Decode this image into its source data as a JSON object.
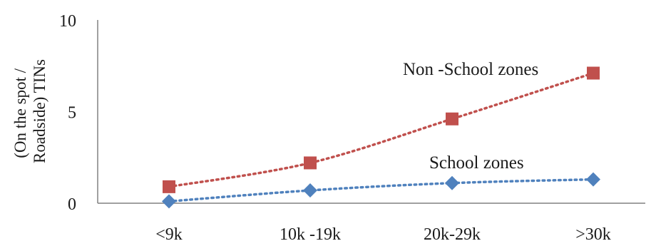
{
  "chart_data": {
    "type": "line",
    "categories": [
      "<9k",
      "10k -19k",
      "20k-29k",
      ">30k"
    ],
    "ylabel_lines": [
      "(On the spot /",
      "Roadside) TINs"
    ],
    "ylim": [
      0,
      10
    ],
    "yticks": [
      "0",
      "5",
      "10"
    ],
    "grid": false,
    "legend": "inline labels next to lines",
    "series": [
      {
        "name": "Non -School zones",
        "values": [
          0.9,
          2.2,
          4.6,
          7.1
        ],
        "color": "#c0504d",
        "marker": "square",
        "line_style": "dotted"
      },
      {
        "name": "School zones",
        "values": [
          0.1,
          0.7,
          1.1,
          1.3
        ],
        "color": "#4f81bd",
        "marker": "diamond",
        "line_style": "dotted"
      }
    ]
  }
}
